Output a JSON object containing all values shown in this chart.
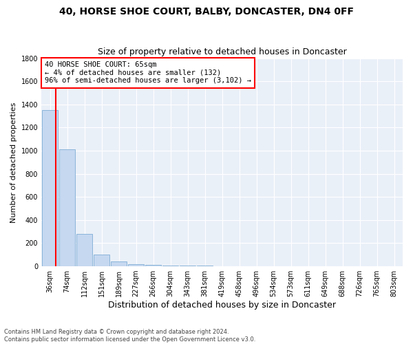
{
  "title1": "40, HORSE SHOE COURT, BALBY, DONCASTER, DN4 0FF",
  "title2": "Size of property relative to detached houses in Doncaster",
  "xlabel": "Distribution of detached houses by size in Doncaster",
  "ylabel": "Number of detached properties",
  "categories": [
    "36sqm",
    "74sqm",
    "112sqm",
    "151sqm",
    "189sqm",
    "227sqm",
    "266sqm",
    "304sqm",
    "343sqm",
    "381sqm",
    "419sqm",
    "458sqm",
    "496sqm",
    "534sqm",
    "573sqm",
    "611sqm",
    "649sqm",
    "688sqm",
    "726sqm",
    "765sqm",
    "803sqm"
  ],
  "values": [
    1350,
    1010,
    280,
    100,
    40,
    20,
    12,
    8,
    5,
    4,
    3,
    2,
    2,
    2,
    1,
    1,
    1,
    1,
    0,
    0,
    0
  ],
  "bar_color": "#c5d8f0",
  "bar_edgecolor": "#7eadd4",
  "annotation_text": "40 HORSE SHOE COURT: 65sqm\n← 4% of detached houses are smaller (132)\n96% of semi-detached houses are larger (3,102) →",
  "annotation_box_edgecolor": "red",
  "annotation_box_facecolor": "white",
  "vline_x": 0.35,
  "vline_color": "red",
  "ylim": [
    0,
    1800
  ],
  "yticks": [
    0,
    200,
    400,
    600,
    800,
    1000,
    1200,
    1400,
    1600,
    1800
  ],
  "footnote": "Contains HM Land Registry data © Crown copyright and database right 2024.\nContains public sector information licensed under the Open Government Licence v3.0.",
  "bg_color": "#eaf0f8",
  "grid_color": "#ffffff",
  "title1_fontsize": 10,
  "title2_fontsize": 9,
  "xlabel_fontsize": 9,
  "ylabel_fontsize": 8,
  "annot_fontsize": 7.5,
  "footnote_fontsize": 6,
  "tick_fontsize": 7
}
